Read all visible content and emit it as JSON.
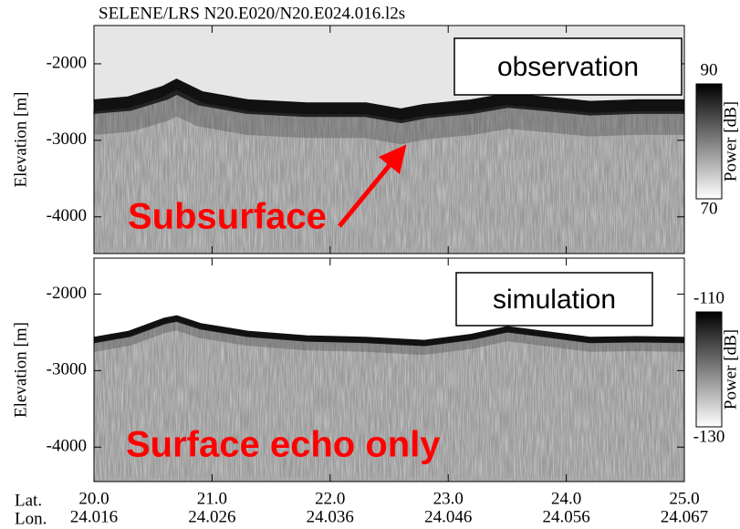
{
  "chart_data": [
    {
      "type": "radargram",
      "title": "SELENE/LRS  N20.E020/N20.E024.016.l2s",
      "ylabel": "Elevation [m]",
      "xlim": [
        20,
        25
      ],
      "ylim": [
        -4480,
        -1500
      ],
      "yticks": [
        -2000,
        -3000,
        -4000
      ],
      "panel_label": "observation",
      "annotation": "Subsurface",
      "colorbar": {
        "label": "Power [dB]",
        "lim": [
          70,
          90
        ]
      },
      "surface": {
        "x": [
          20,
          20.3,
          20.6,
          20.7,
          20.9,
          21.3,
          21.8,
          22.3,
          22.6,
          22.8,
          23.2,
          23.5,
          23.8,
          24.2,
          24.6,
          25
        ],
        "values": [
          -2560,
          -2520,
          -2380,
          -2300,
          -2450,
          -2560,
          -2600,
          -2600,
          -2680,
          -2620,
          -2560,
          -2480,
          -2520,
          -2580,
          -2560,
          -2560
        ]
      }
    },
    {
      "type": "radargram",
      "ylabel": "Elevation [m]",
      "xlim": [
        20,
        25
      ],
      "ylim": [
        -4450,
        -1530
      ],
      "yticks": [
        -2000,
        -3000,
        -4000
      ],
      "xticks": [
        {
          "value": 20,
          "label": "20.0"
        },
        {
          "value": 21,
          "label": "21.0"
        },
        {
          "value": 22,
          "label": "22.0"
        },
        {
          "value": 23,
          "label": "23.0"
        },
        {
          "value": 24,
          "label": "24.0"
        },
        {
          "value": 25,
          "label": "25.0"
        }
      ],
      "lon_labels": [
        "24.016",
        "24.026",
        "24.036",
        "24.046",
        "24.056",
        "24.067"
      ],
      "xlabel_lat": "Lat.",
      "xlabel_lon": "Lon.",
      "panel_label": "simulation",
      "annotation": "Surface echo only",
      "colorbar": {
        "label": "Power [dB]",
        "lim": [
          -130,
          -110
        ]
      },
      "surface": {
        "x": [
          20,
          20.3,
          20.6,
          20.7,
          20.9,
          21.3,
          21.8,
          22.3,
          22.8,
          23.2,
          23.5,
          23.8,
          24.2,
          24.6,
          25
        ],
        "values": [
          -2600,
          -2520,
          -2350,
          -2320,
          -2420,
          -2520,
          -2580,
          -2600,
          -2640,
          -2560,
          -2460,
          -2520,
          -2600,
          -2590,
          -2600
        ]
      }
    }
  ]
}
